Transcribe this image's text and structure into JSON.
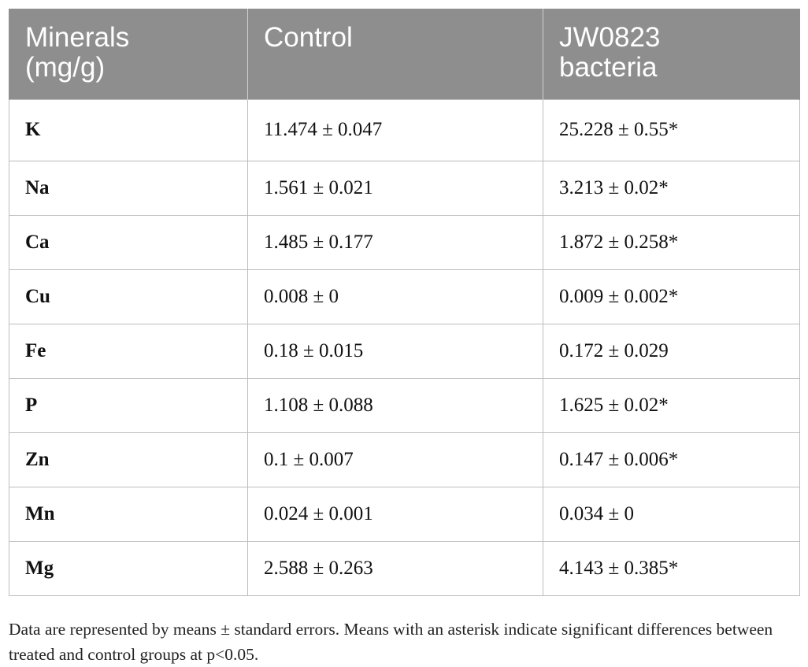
{
  "table": {
    "headers": [
      "Minerals\n(mg/g)",
      "Control",
      "JW0823\nbacteria"
    ],
    "rows": [
      {
        "mineral": "K",
        "control": "11.474 ± 0.047",
        "bacteria": "25.228 ± 0.55*"
      },
      {
        "mineral": "Na",
        "control": "1.561 ± 0.021",
        "bacteria": "3.213 ± 0.02*"
      },
      {
        "mineral": "Ca",
        "control": "1.485 ± 0.177",
        "bacteria": "1.872 ± 0.258*"
      },
      {
        "mineral": "Cu",
        "control": "0.008 ± 0",
        "bacteria": "0.009 ± 0.002*"
      },
      {
        "mineral": "Fe",
        "control": "0.18 ± 0.015",
        "bacteria": "0.172 ± 0.029"
      },
      {
        "mineral": "P",
        "control": "1.108 ± 0.088",
        "bacteria": "1.625 ± 0.02*"
      },
      {
        "mineral": "Zn",
        "control": "0.1 ± 0.007",
        "bacteria": "0.147 ± 0.006*"
      },
      {
        "mineral": "Mn",
        "control": "0.024 ± 0.001",
        "bacteria": "0.034 ± 0"
      },
      {
        "mineral": "Mg",
        "control": "2.588 ± 0.263",
        "bacteria": "4.143 ± 0.385*"
      }
    ]
  },
  "footnote": "Data are represented by means ± standard errors. Means with an asterisk indicate significant differences between treated and control groups at p<0.05.",
  "colors": {
    "header_background": "#8e8e8e",
    "header_text": "#ffffff",
    "grid_line": "#bdbdbd"
  }
}
